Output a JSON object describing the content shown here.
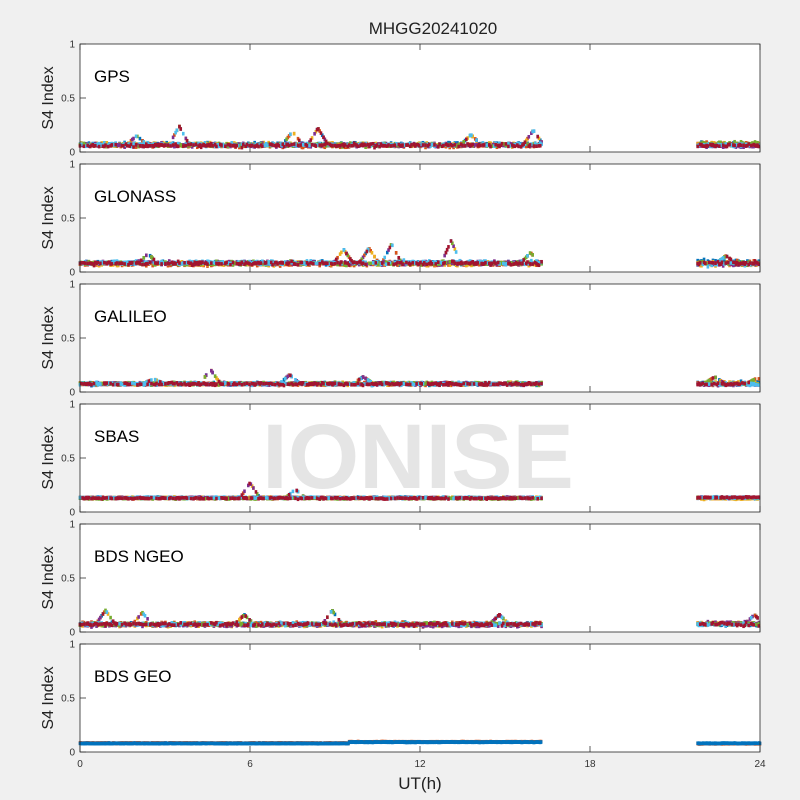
{
  "title": "MHGG20241020",
  "watermark": "IONISE",
  "chart_data": [
    {
      "type": "scatter",
      "panel_label": "GPS",
      "ylabel": "S4 Index",
      "ylim": [
        0,
        1
      ],
      "yticks": [
        "0",
        "0.5",
        "1"
      ],
      "xlim": [
        0,
        24
      ],
      "coverage_hours": [
        [
          0,
          16.3
        ],
        [
          21.8,
          24
        ]
      ],
      "baseline_s4": 0.07,
      "spread_s4": 0.045,
      "peaks": [
        [
          3.5,
          0.24
        ],
        [
          8.4,
          0.22
        ],
        [
          7.5,
          0.19
        ],
        [
          16.0,
          0.2
        ],
        [
          2.0,
          0.15
        ],
        [
          13.8,
          0.16
        ]
      ]
    },
    {
      "type": "scatter",
      "panel_label": "GLONASS",
      "ylabel": "S4 Index",
      "ylim": [
        0,
        1
      ],
      "yticks": [
        "0",
        "0.5",
        "1"
      ],
      "xlim": [
        0,
        24
      ],
      "coverage_hours": [
        [
          0,
          16.3
        ],
        [
          21.8,
          24
        ]
      ],
      "baseline_s4": 0.08,
      "spread_s4": 0.05,
      "peaks": [
        [
          13.1,
          0.29
        ],
        [
          11.0,
          0.26
        ],
        [
          10.2,
          0.22
        ],
        [
          9.3,
          0.21
        ],
        [
          2.4,
          0.17
        ],
        [
          15.9,
          0.18
        ],
        [
          22.8,
          0.15
        ]
      ]
    },
    {
      "type": "scatter",
      "panel_label": "GALILEO",
      "ylabel": "S4 Index",
      "ylim": [
        0,
        1
      ],
      "yticks": [
        "0",
        "0.5",
        "1"
      ],
      "xlim": [
        0,
        24
      ],
      "coverage_hours": [
        [
          0,
          16.3
        ],
        [
          21.8,
          24
        ]
      ],
      "baseline_s4": 0.08,
      "spread_s4": 0.035,
      "peaks": [
        [
          4.6,
          0.21
        ],
        [
          7.4,
          0.16
        ],
        [
          10.0,
          0.14
        ],
        [
          2.6,
          0.12
        ],
        [
          22.4,
          0.14
        ],
        [
          23.9,
          0.13
        ]
      ]
    },
    {
      "type": "scatter",
      "panel_label": "SBAS",
      "ylabel": "S4 Index",
      "ylim": [
        0,
        1
      ],
      "yticks": [
        "0",
        "0.5",
        "1"
      ],
      "xlim": [
        0,
        24
      ],
      "coverage_hours": [
        [
          0,
          16.3
        ],
        [
          21.8,
          24
        ]
      ],
      "baseline_s4": 0.13,
      "spread_s4": 0.02,
      "peaks": [
        [
          6.0,
          0.27
        ],
        [
          7.6,
          0.21
        ]
      ]
    },
    {
      "type": "scatter",
      "panel_label": "BDS NGEO",
      "ylabel": "S4 Index",
      "ylim": [
        0,
        1
      ],
      "yticks": [
        "0",
        "0.5",
        "1"
      ],
      "xlim": [
        0,
        24
      ],
      "coverage_hours": [
        [
          0,
          16.3
        ],
        [
          21.8,
          24
        ]
      ],
      "baseline_s4": 0.07,
      "spread_s4": 0.04,
      "peaks": [
        [
          0.9,
          0.2
        ],
        [
          2.2,
          0.18
        ],
        [
          5.8,
          0.16
        ],
        [
          8.9,
          0.2
        ],
        [
          14.8,
          0.16
        ],
        [
          23.8,
          0.16
        ]
      ]
    },
    {
      "type": "line",
      "panel_label": "BDS GEO",
      "ylabel": "S4 Index",
      "ylim": [
        0,
        1
      ],
      "yticks": [
        "0",
        "0.5",
        "1"
      ],
      "xlim": [
        0,
        24
      ],
      "coverage_hours": [
        [
          0,
          16.3
        ],
        [
          21.8,
          24
        ]
      ],
      "baseline_s4": 0.08,
      "spread_s4": 0.008,
      "peaks": []
    }
  ],
  "xaxis": {
    "label": "UT(h)",
    "ticks": [
      0,
      6,
      12,
      18,
      24
    ]
  },
  "series_colors": [
    "#0072BD",
    "#D95319",
    "#EDB120",
    "#7E2F8E",
    "#77AC30",
    "#4DBEEE",
    "#A2142F"
  ]
}
